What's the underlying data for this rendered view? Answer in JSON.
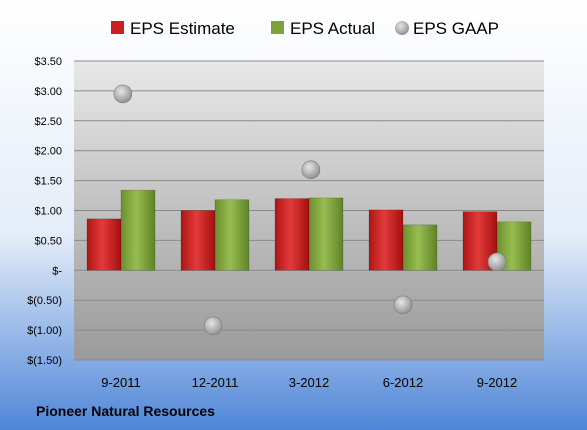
{
  "chart_data": {
    "type": "bar",
    "title": "",
    "categories": [
      "9-2011",
      "12-2011",
      "3-2012",
      "6-2012",
      "9-2012"
    ],
    "series": [
      {
        "name": "EPS Estimate",
        "kind": "bar",
        "color": "#cc1f1f",
        "values": [
          0.86,
          1.0,
          1.2,
          1.01,
          0.98
        ]
      },
      {
        "name": "EPS Actual",
        "kind": "bar",
        "color": "#7ea23a",
        "values": [
          1.34,
          1.18,
          1.21,
          0.76,
          0.81
        ]
      },
      {
        "name": "EPS GAAP",
        "kind": "scatter",
        "color": "#a8a8a8",
        "values": [
          2.95,
          -0.93,
          1.68,
          -0.58,
          0.14
        ]
      }
    ],
    "ylim": [
      -1.5,
      3.5
    ],
    "ytick_values": [
      3.5,
      3.0,
      2.5,
      2.0,
      1.5,
      1.0,
      0.5,
      0,
      -0.5,
      -1.0,
      -1.5
    ],
    "ytick_labels": [
      "$3.50",
      "$3.00",
      "$2.50",
      "$2.00",
      "$1.50",
      "$1.00",
      "$0.50",
      "$-",
      "$(0.50)",
      "$(1.00)",
      "$(1.50)"
    ],
    "grid": true,
    "legend_position": "top",
    "footer": "Pioneer Natural Resources",
    "xlabel": "",
    "ylabel": ""
  }
}
